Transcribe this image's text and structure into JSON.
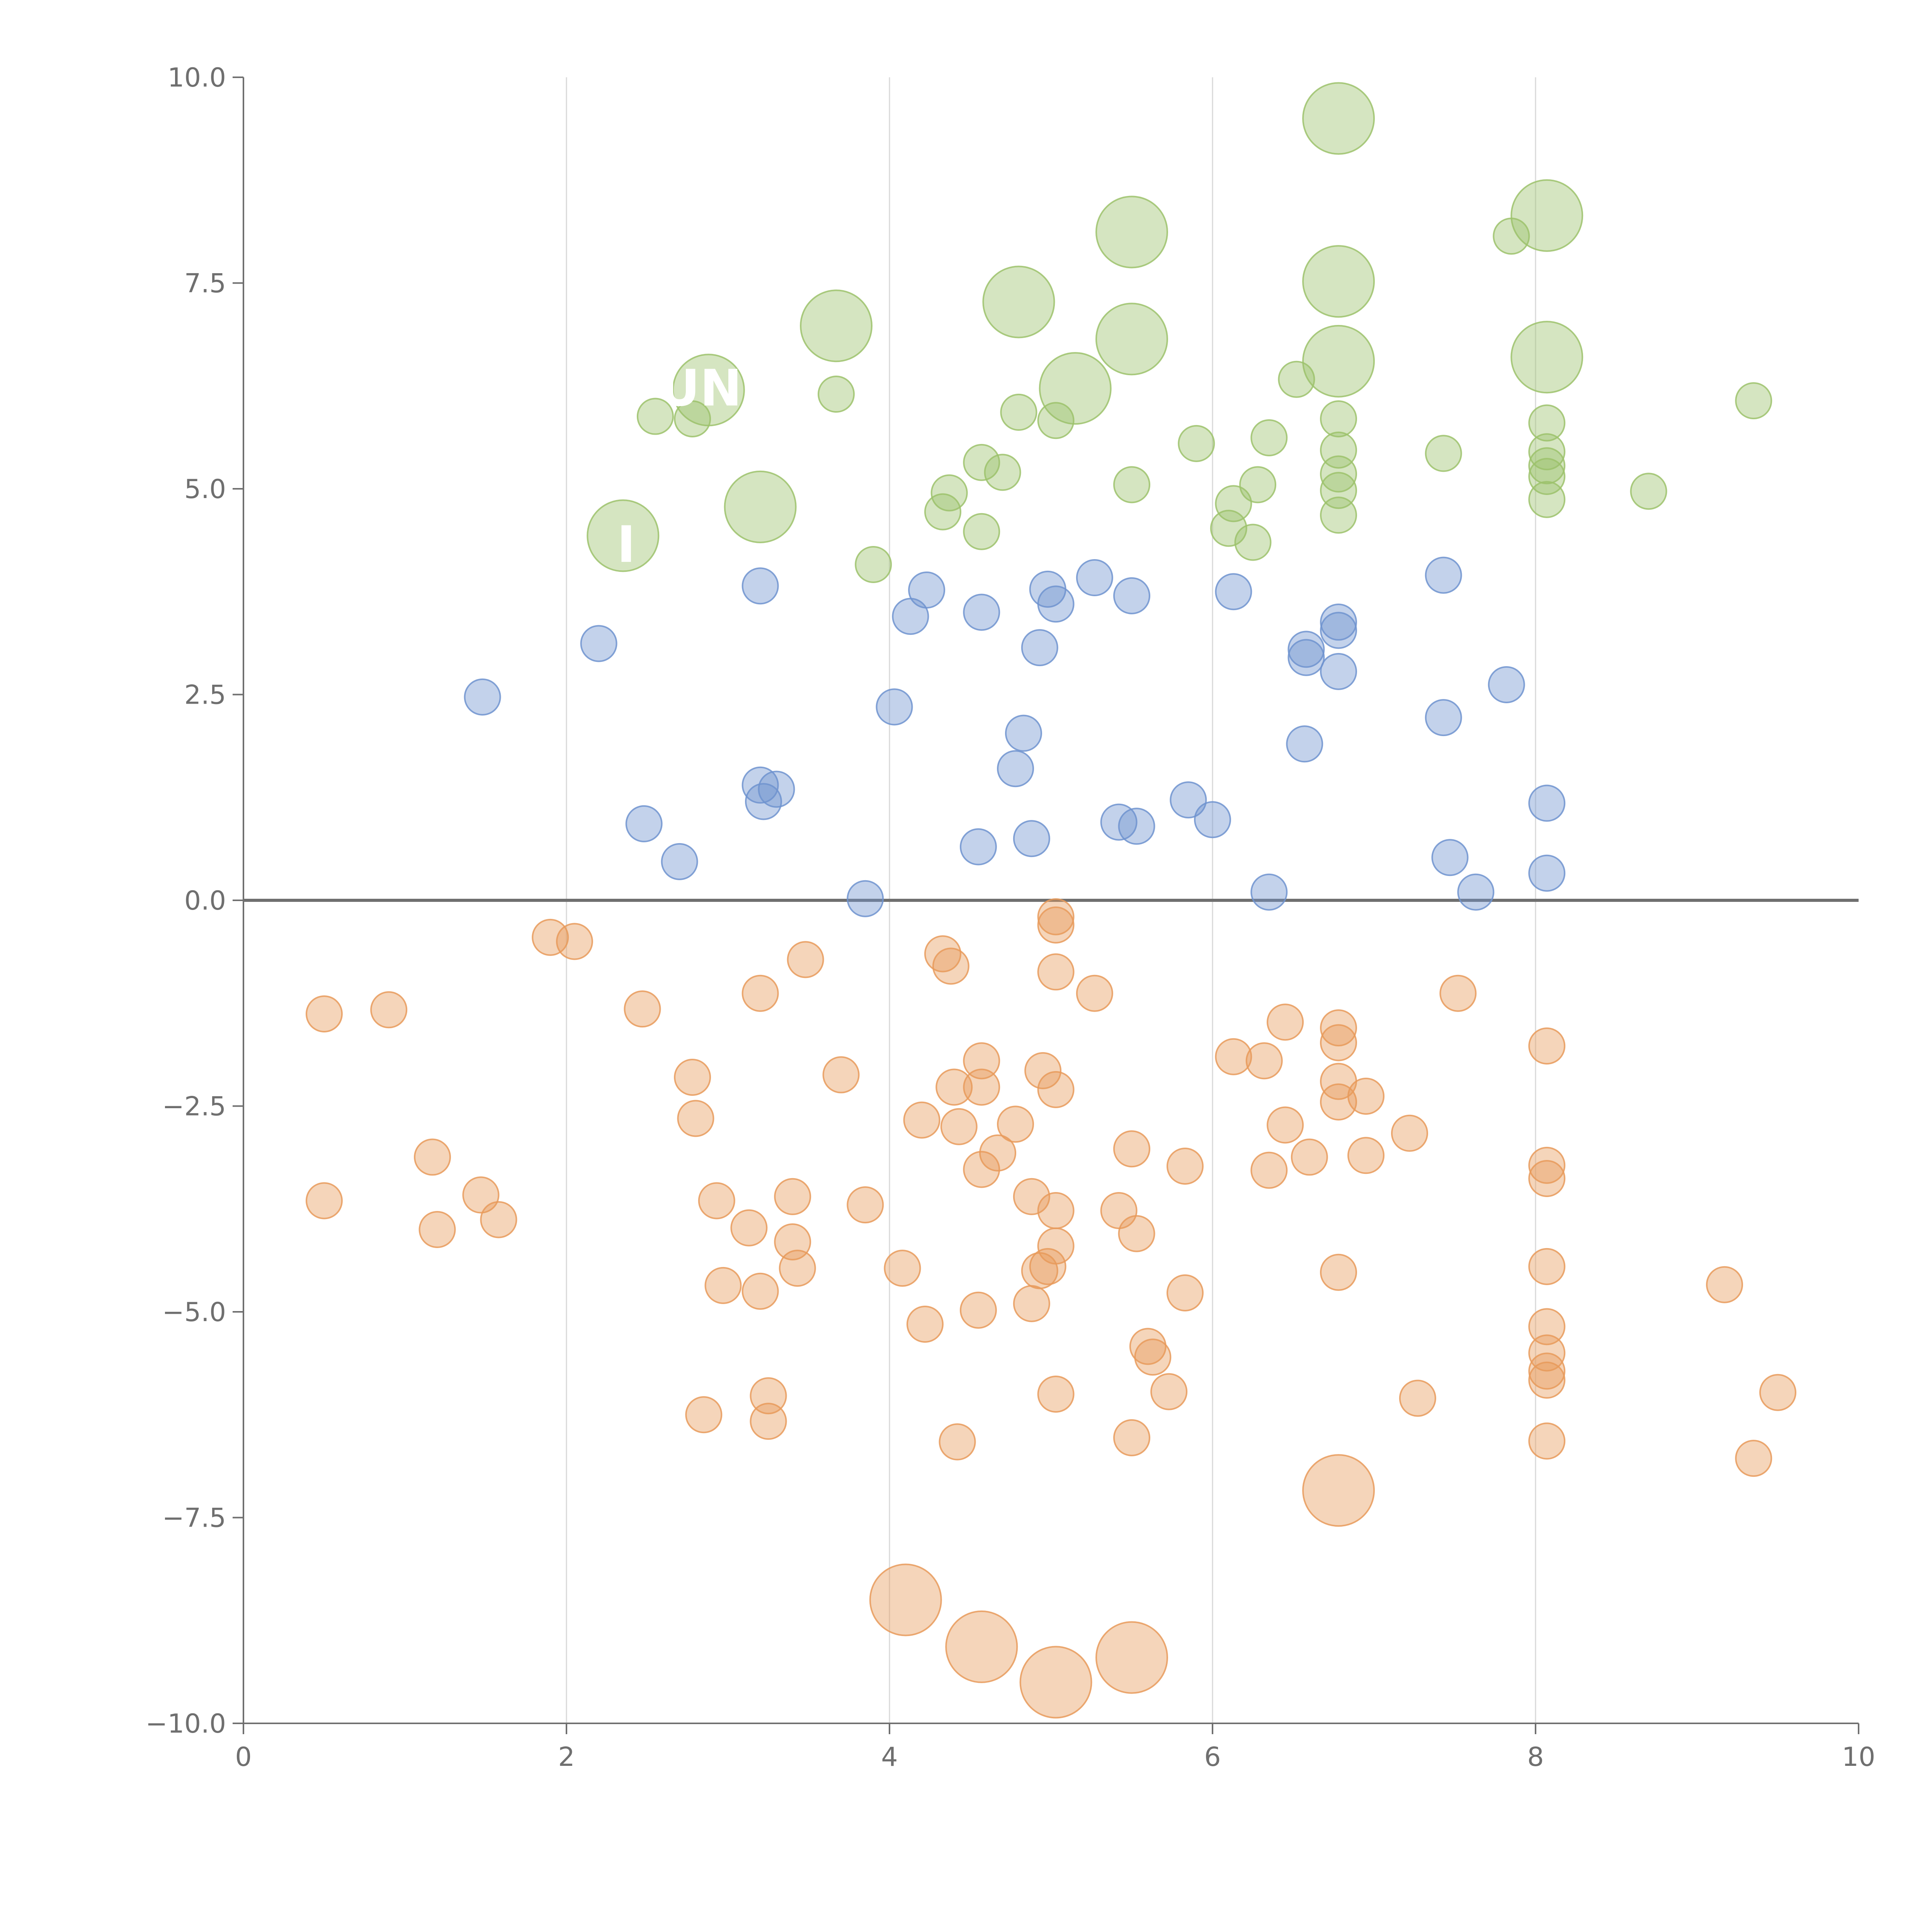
{
  "chart_data": {
    "type": "scatter",
    "title": "",
    "xlabel": "",
    "ylabel": "",
    "xlim": [
      0,
      10
    ],
    "ylim": [
      -10,
      10
    ],
    "x_ticks": [
      "0",
      "2",
      "4",
      "6",
      "8",
      "10"
    ],
    "y_ticks": [
      "10.0",
      "7.5",
      "5.0",
      "2.5",
      "0.0",
      "−2.5",
      "−5.0",
      "−7.5",
      "−10.0"
    ],
    "vertical_gridlines_at": [
      2,
      4,
      6,
      8
    ],
    "zero_line_y": 0,
    "colors": {
      "green": "#9cc26b",
      "blue": "#6f93cf",
      "orange": "#e89a5b",
      "grid": "#d9d9d9",
      "axis": "#6f6f6f",
      "zero_line": "#6f6f6f"
    },
    "point_labels": [
      {
        "text": "UN",
        "x": 2.83,
        "y": 6.2
      },
      {
        "text": "I",
        "x": 2.37,
        "y": 4.3
      }
    ],
    "series": [
      {
        "group": "upper-big",
        "color": "green",
        "size": "large",
        "points": [
          [
            6.78,
            9.5
          ],
          [
            5.5,
            8.12
          ],
          [
            8.07,
            8.32
          ],
          [
            6.78,
            7.52
          ],
          [
            4.8,
            7.27
          ],
          [
            3.67,
            6.98
          ],
          [
            5.5,
            6.82
          ],
          [
            6.78,
            6.55
          ],
          [
            8.07,
            6.6
          ],
          [
            2.88,
            6.2
          ],
          [
            5.15,
            6.22
          ],
          [
            3.2,
            4.78
          ],
          [
            2.35,
            4.43
          ]
        ]
      },
      {
        "group": "upper-small",
        "color": "green",
        "size": "small",
        "points": [
          [
            7.85,
            8.07
          ],
          [
            6.52,
            6.33
          ],
          [
            9.35,
            6.07
          ],
          [
            3.67,
            6.15
          ],
          [
            2.55,
            5.88
          ],
          [
            2.78,
            5.85
          ],
          [
            4.8,
            5.93
          ],
          [
            5.03,
            5.83
          ],
          [
            6.78,
            5.85
          ],
          [
            8.07,
            5.8
          ],
          [
            6.35,
            5.62
          ],
          [
            5.9,
            5.55
          ],
          [
            7.43,
            5.43
          ],
          [
            8.07,
            5.45
          ],
          [
            8.07,
            5.28
          ],
          [
            8.07,
            5.15
          ],
          [
            8.07,
            4.87
          ],
          [
            6.78,
            5.47
          ],
          [
            6.78,
            5.18
          ],
          [
            6.78,
            4.98
          ],
          [
            6.78,
            4.68
          ],
          [
            8.7,
            4.97
          ],
          [
            4.57,
            5.32
          ],
          [
            4.7,
            5.2
          ],
          [
            4.37,
            4.95
          ],
          [
            4.33,
            4.72
          ],
          [
            4.57,
            4.48
          ],
          [
            5.5,
            5.05
          ],
          [
            6.28,
            5.05
          ],
          [
            6.13,
            4.82
          ],
          [
            6.1,
            4.52
          ],
          [
            6.25,
            4.35
          ],
          [
            3.9,
            4.08
          ]
        ]
      },
      {
        "group": "blue",
        "color": "blue",
        "size": "small",
        "points": [
          [
            3.2,
            3.82
          ],
          [
            2.2,
            3.12
          ],
          [
            1.48,
            2.47
          ],
          [
            4.13,
            3.45
          ],
          [
            4.23,
            3.77
          ],
          [
            4.57,
            3.5
          ],
          [
            4.98,
            3.78
          ],
          [
            5.03,
            3.6
          ],
          [
            4.93,
            3.07
          ],
          [
            5.27,
            3.92
          ],
          [
            5.5,
            3.7
          ],
          [
            6.13,
            3.75
          ],
          [
            6.58,
            3.05
          ],
          [
            6.58,
            2.95
          ],
          [
            6.78,
            3.38
          ],
          [
            6.78,
            3.28
          ],
          [
            6.78,
            2.78
          ],
          [
            7.43,
            3.95
          ],
          [
            7.43,
            2.22
          ],
          [
            7.82,
            2.62
          ],
          [
            4.03,
            2.35
          ],
          [
            4.83,
            2.03
          ],
          [
            4.78,
            1.6
          ],
          [
            6.57,
            1.9
          ],
          [
            8.07,
            1.18
          ],
          [
            3.2,
            1.4
          ],
          [
            3.22,
            1.2
          ],
          [
            3.3,
            1.35
          ],
          [
            2.48,
            0.93
          ],
          [
            2.7,
            0.47
          ],
          [
            5.85,
            1.22
          ],
          [
            6.0,
            0.98
          ],
          [
            5.42,
            0.95
          ],
          [
            5.53,
            0.9
          ],
          [
            4.55,
            0.65
          ],
          [
            4.88,
            0.75
          ],
          [
            3.85,
            0.02
          ],
          [
            6.35,
            0.1
          ],
          [
            7.47,
            0.52
          ],
          [
            7.63,
            0.1
          ],
          [
            8.07,
            0.33
          ]
        ]
      },
      {
        "group": "lower-small",
        "color": "orange",
        "size": "small",
        "points": [
          [
            5.03,
            -0.2
          ],
          [
            5.03,
            -0.3
          ],
          [
            4.33,
            -0.65
          ],
          [
            4.38,
            -0.8
          ],
          [
            5.03,
            -0.87
          ],
          [
            5.27,
            -1.13
          ],
          [
            3.48,
            -0.72
          ],
          [
            3.2,
            -1.13
          ],
          [
            1.9,
            -0.45
          ],
          [
            2.05,
            -0.5
          ],
          [
            0.5,
            -1.38
          ],
          [
            0.9,
            -1.33
          ],
          [
            2.47,
            -1.32
          ],
          [
            7.52,
            -1.13
          ],
          [
            6.45,
            -1.48
          ],
          [
            6.78,
            -1.55
          ],
          [
            6.78,
            -1.73
          ],
          [
            8.07,
            -1.77
          ],
          [
            6.13,
            -1.9
          ],
          [
            6.32,
            -1.95
          ],
          [
            2.78,
            -2.15
          ],
          [
            3.7,
            -2.12
          ],
          [
            4.57,
            -1.95
          ],
          [
            4.95,
            -2.07
          ],
          [
            4.4,
            -2.27
          ],
          [
            4.57,
            -2.27
          ],
          [
            5.03,
            -2.3
          ],
          [
            6.78,
            -2.2
          ],
          [
            6.78,
            -2.45
          ],
          [
            6.95,
            -2.38
          ],
          [
            2.8,
            -2.65
          ],
          [
            4.2,
            -2.67
          ],
          [
            4.43,
            -2.75
          ],
          [
            4.78,
            -2.72
          ],
          [
            6.45,
            -2.73
          ],
          [
            7.22,
            -2.83
          ],
          [
            1.17,
            -3.12
          ],
          [
            4.67,
            -3.07
          ],
          [
            4.57,
            -3.27
          ],
          [
            5.5,
            -3.02
          ],
          [
            5.83,
            -3.23
          ],
          [
            6.35,
            -3.28
          ],
          [
            6.6,
            -3.12
          ],
          [
            6.95,
            -3.1
          ],
          [
            8.07,
            -3.22
          ],
          [
            8.07,
            -3.38
          ],
          [
            0.5,
            -3.65
          ],
          [
            1.47,
            -3.58
          ],
          [
            1.2,
            -4.0
          ],
          [
            1.58,
            -3.88
          ],
          [
            2.93,
            -3.65
          ],
          [
            3.4,
            -3.6
          ],
          [
            3.85,
            -3.7
          ],
          [
            4.88,
            -3.6
          ],
          [
            5.03,
            -3.77
          ],
          [
            5.42,
            -3.77
          ],
          [
            5.53,
            -4.05
          ],
          [
            3.13,
            -3.98
          ],
          [
            3.4,
            -4.15
          ],
          [
            3.43,
            -4.47
          ],
          [
            4.08,
            -4.47
          ],
          [
            4.93,
            -4.5
          ],
          [
            4.98,
            -4.45
          ],
          [
            5.03,
            -4.2
          ],
          [
            6.78,
            -4.52
          ],
          [
            8.07,
            -4.45
          ],
          [
            2.97,
            -4.68
          ],
          [
            3.2,
            -4.75
          ],
          [
            5.83,
            -4.77
          ],
          [
            9.17,
            -4.67
          ],
          [
            4.22,
            -5.15
          ],
          [
            4.55,
            -4.98
          ],
          [
            4.88,
            -4.9
          ],
          [
            5.6,
            -5.42
          ],
          [
            5.63,
            -5.55
          ],
          [
            8.07,
            -5.18
          ],
          [
            8.07,
            -5.5
          ],
          [
            8.07,
            -5.72
          ],
          [
            8.07,
            -5.83
          ],
          [
            5.73,
            -5.97
          ],
          [
            5.03,
            -6.0
          ],
          [
            3.25,
            -6.02
          ],
          [
            3.25,
            -6.33
          ],
          [
            2.85,
            -6.25
          ],
          [
            4.42,
            -6.58
          ],
          [
            5.5,
            -6.53
          ],
          [
            7.27,
            -6.05
          ],
          [
            9.5,
            -5.98
          ],
          [
            8.07,
            -6.57
          ],
          [
            9.35,
            -6.78
          ]
        ]
      },
      {
        "group": "lower-big",
        "color": "orange",
        "size": "large",
        "points": [
          [
            6.78,
            -7.17
          ],
          [
            4.1,
            -8.5
          ],
          [
            4.57,
            -9.07
          ],
          [
            5.5,
            -9.2
          ],
          [
            5.03,
            -9.5
          ]
        ]
      }
    ]
  }
}
